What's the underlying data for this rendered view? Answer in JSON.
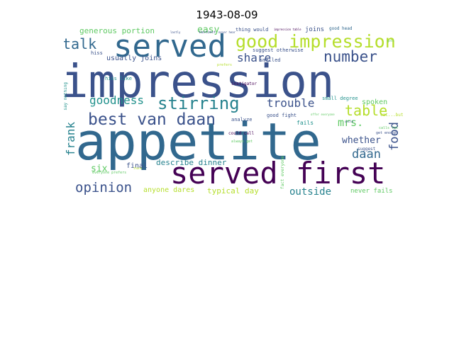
{
  "figure": {
    "title": "1943-08-09"
  },
  "palette": [
    "#3b528b",
    "#31688e",
    "#21918c",
    "#5ec962",
    "#b5de2b",
    "#fde725",
    "#440154",
    "#35b779",
    "#482878",
    "#26828e"
  ],
  "words": [
    {
      "text": "impression",
      "weight": 1.0,
      "color": "#3b528b"
    },
    {
      "text": "appetite",
      "weight": 0.98,
      "color": "#31688e"
    },
    {
      "text": "served first",
      "weight": 0.52,
      "color": "#440154"
    },
    {
      "text": "served",
      "weight": 0.5,
      "color": "#31688e"
    },
    {
      "text": "good impression",
      "weight": 0.32,
      "color": "#b5de2b"
    },
    {
      "text": "best van daan",
      "weight": 0.3,
      "color": "#3b528b"
    },
    {
      "text": "stirring",
      "weight": 0.26,
      "color": "#26828e"
    },
    {
      "text": "number",
      "weight": 0.24,
      "color": "#3b528b"
    },
    {
      "text": "table",
      "weight": 0.23,
      "color": "#b5de2b"
    },
    {
      "text": "opinion",
      "weight": 0.22,
      "color": "#3b528b"
    },
    {
      "text": "talk",
      "weight": 0.22,
      "color": "#31688e"
    },
    {
      "text": "goodness",
      "weight": 0.18,
      "color": "#21918c"
    },
    {
      "text": "trouble",
      "weight": 0.18,
      "color": "#3b528b"
    },
    {
      "text": "frank",
      "weight": 0.18,
      "color": "#26828e"
    },
    {
      "text": "food",
      "weight": 0.18,
      "color": "#3b528b"
    },
    {
      "text": "daan",
      "weight": 0.18,
      "color": "#31688e"
    },
    {
      "text": "share",
      "weight": 0.17,
      "color": "#3b528b"
    },
    {
      "text": "mrs.",
      "weight": 0.16,
      "color": "#5ec962"
    },
    {
      "text": "whether",
      "weight": 0.14,
      "color": "#3b528b"
    },
    {
      "text": "outside",
      "weight": 0.14,
      "color": "#26828e"
    },
    {
      "text": "easy",
      "weight": 0.13,
      "color": "#5ec962"
    },
    {
      "text": "six",
      "weight": 0.13,
      "color": "#5ec962"
    },
    {
      "text": "generous portion",
      "weight": 0.12,
      "color": "#5ec962"
    },
    {
      "text": "describe dinner",
      "weight": 0.12,
      "color": "#26828e"
    },
    {
      "text": "typical day",
      "weight": 0.12,
      "color": "#b5de2b"
    },
    {
      "text": "spoken",
      "weight": 0.11,
      "color": "#5ec962"
    },
    {
      "text": "usually joins",
      "weight": 0.1,
      "color": "#3b528b"
    },
    {
      "text": "final",
      "weight": 0.1,
      "color": "#3b528b"
    },
    {
      "text": "anyone dares",
      "weight": 0.1,
      "color": "#b5de2b"
    },
    {
      "text": "never fails",
      "weight": 0.09,
      "color": "#5ec962"
    },
    {
      "text": "joins",
      "weight": 0.09,
      "color": "#3b528b"
    },
    {
      "text": "fails",
      "weight": 0.09,
      "color": "#21918c"
    },
    {
      "text": "analyze",
      "weight": 0.07,
      "color": "#3b528b"
    },
    {
      "text": "suggest otherwise",
      "weight": 0.07,
      "color": "#3b528b"
    },
    {
      "text": "hiss like",
      "weight": 0.07,
      "color": "#21918c"
    },
    {
      "text": "smelled",
      "weight": 0.07,
      "color": "#3b528b"
    },
    {
      "text": "small degree",
      "weight": 0.07,
      "color": "#21918c"
    },
    {
      "text": "good fight",
      "weight": 0.06,
      "color": "#3b528b"
    },
    {
      "text": "instigator",
      "weight": 0.06,
      "color": "#440154"
    },
    {
      "text": "thing would",
      "weight": 0.07,
      "color": "#3b528b"
    },
    {
      "text": "good head",
      "weight": 0.06,
      "color": "#31688e"
    },
    {
      "text": "suggest",
      "weight": 0.06,
      "color": "#3b528b"
    },
    {
      "text": "could call",
      "weight": 0.06,
      "color": "#440154"
    },
    {
      "text": "say nothing",
      "weight": 0.06,
      "color": "#21918c"
    },
    {
      "text": "fact everyone",
      "weight": 0.06,
      "color": "#5ec962"
    },
    {
      "text": "cat...but",
      "weight": 0.06,
      "color": "#b5de2b"
    },
    {
      "text": "hiss",
      "weight": 0.07,
      "color": "#3b528b"
    },
    {
      "text": "get enough",
      "weight": 0.05,
      "color": "#3b528b"
    },
    {
      "text": "everyone prefers",
      "weight": 0.05,
      "color": "#5ec962"
    },
    {
      "text": "always get",
      "weight": 0.05,
      "color": "#5ec962"
    },
    {
      "text": "tastiest",
      "weight": 0.04,
      "color": "#3b528b"
    },
    {
      "text": "impression table",
      "weight": 0.04,
      "color": "#440154"
    },
    {
      "text": "calls fat",
      "weight": 0.04,
      "color": "#5ec962"
    },
    {
      "text": "offer everyone",
      "weight": 0.04,
      "color": "#5ec962"
    },
    {
      "text": "uncle",
      "weight": 0.04,
      "color": "#3b528b"
    },
    {
      "text": "prefers",
      "weight": 0.04,
      "color": "#b5de2b"
    },
    {
      "text": "thank",
      "weight": 0.04,
      "color": "#b5de2b"
    },
    {
      "text": "lastly",
      "weight": 0.04,
      "color": "#3b528b"
    },
    {
      "text": "never hear",
      "weight": 0.04,
      "color": "#3b528b"
    },
    {
      "text": "gets",
      "weight": 0.04,
      "color": "#5ec962"
    }
  ]
}
